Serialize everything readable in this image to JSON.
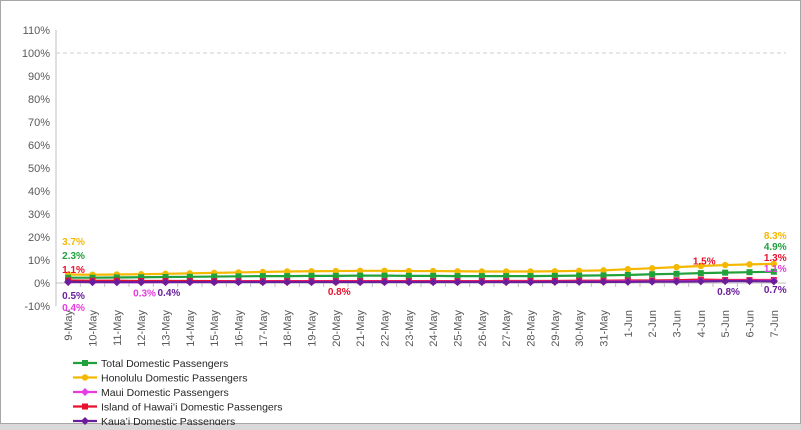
{
  "chart_data": {
    "type": "line",
    "ylim": [
      -10,
      110
    ],
    "y_ticks": [
      "-10%",
      "0%",
      "10%",
      "20%",
      "30%",
      "40%",
      "50%",
      "60%",
      "70%",
      "80%",
      "90%",
      "100%",
      "110%"
    ],
    "y_tick_values": [
      -10,
      0,
      10,
      20,
      30,
      40,
      50,
      60,
      70,
      80,
      90,
      100,
      110
    ],
    "reference_line": 100,
    "grid": false,
    "legend_position": "bottom-left",
    "categories": [
      "9-May",
      "10-May",
      "11-May",
      "12-May",
      "13-May",
      "14-May",
      "15-May",
      "16-May",
      "17-May",
      "18-May",
      "19-May",
      "20-May",
      "21-May",
      "22-May",
      "23-May",
      "24-May",
      "25-May",
      "26-May",
      "27-May",
      "28-May",
      "29-May",
      "30-May",
      "31-May",
      "1-Jun",
      "2-Jun",
      "3-Jun",
      "4-Jun",
      "5-Jun",
      "6-Jun",
      "7-Jun"
    ],
    "series": [
      {
        "name": "Total Domestic Passengers",
        "color": "#21a13c",
        "marker": "square",
        "values": [
          2.3,
          2.3,
          2.4,
          2.5,
          2.6,
          2.7,
          2.8,
          2.9,
          3.0,
          3.0,
          3.1,
          3.1,
          3.2,
          3.2,
          3.1,
          3.1,
          3.0,
          3.0,
          3.0,
          3.0,
          3.1,
          3.2,
          3.3,
          3.5,
          3.8,
          4.0,
          4.3,
          4.5,
          4.7,
          4.9
        ]
      },
      {
        "name": "Honolulu Domestic Passengers",
        "color": "#f5b800",
        "marker": "circle",
        "values": [
          3.7,
          3.6,
          3.7,
          3.8,
          4.0,
          4.2,
          4.4,
          4.6,
          4.8,
          5.0,
          5.1,
          5.2,
          5.3,
          5.3,
          5.2,
          5.2,
          5.1,
          5.0,
          5.0,
          5.0,
          5.1,
          5.3,
          5.5,
          6.0,
          6.4,
          6.9,
          7.4,
          7.8,
          8.1,
          8.3
        ]
      },
      {
        "name": "Maui Domestic Passengers",
        "color": "#e83ae0",
        "marker": "diamond",
        "values": [
          0.4,
          0.4,
          0.3,
          0.3,
          0.4,
          0.4,
          0.4,
          0.5,
          0.5,
          0.5,
          0.5,
          0.5,
          0.5,
          0.5,
          0.5,
          0.5,
          0.5,
          0.5,
          0.5,
          0.5,
          0.5,
          0.6,
          0.6,
          0.7,
          0.7,
          0.8,
          0.9,
          1.0,
          1.0,
          1.1
        ]
      },
      {
        "name": "Island of Hawai’i Domestic Passengers",
        "color": "#e8102c",
        "marker": "square",
        "values": [
          1.1,
          1.0,
          1.0,
          0.9,
          0.9,
          0.9,
          0.8,
          0.8,
          0.8,
          0.8,
          0.8,
          0.8,
          0.8,
          0.8,
          0.8,
          0.8,
          0.8,
          0.8,
          0.9,
          0.9,
          0.9,
          1.0,
          1.0,
          1.1,
          1.1,
          1.2,
          1.5,
          1.3,
          1.3,
          1.3
        ]
      },
      {
        "name": "Kaua’i Domestic Passengers",
        "color": "#6a1e9c",
        "marker": "diamond",
        "values": [
          0.5,
          0.4,
          0.4,
          0.4,
          0.4,
          0.4,
          0.4,
          0.4,
          0.4,
          0.4,
          0.4,
          0.4,
          0.4,
          0.4,
          0.4,
          0.4,
          0.4,
          0.4,
          0.4,
          0.4,
          0.5,
          0.5,
          0.5,
          0.5,
          0.6,
          0.6,
          0.7,
          0.8,
          0.8,
          0.7
        ]
      }
    ],
    "annotations": [
      {
        "text": "3.7%",
        "series": 1,
        "index": 0,
        "color": "#f5b800"
      },
      {
        "text": "2.3%",
        "series": 0,
        "index": 0,
        "color": "#21a13c"
      },
      {
        "text": "1.1%",
        "series": 3,
        "index": 0,
        "color": "#e8102c"
      },
      {
        "text": "0.5%",
        "series": 4,
        "index": 0,
        "color": "#6a1e9c"
      },
      {
        "text": "0.4%",
        "series": 2,
        "index": 0,
        "color": "#e83ae0"
      },
      {
        "text": "0.3%",
        "series": 2,
        "index": 3,
        "color": "#e83ae0"
      },
      {
        "text": "0.4%",
        "series": 4,
        "index": 4,
        "color": "#6a1e9c"
      },
      {
        "text": "0.8%",
        "series": 3,
        "index": 11,
        "color": "#e8102c"
      },
      {
        "text": "1.5%",
        "series": 3,
        "index": 26,
        "color": "#e8102c"
      },
      {
        "text": "0.8%",
        "series": 4,
        "index": 27,
        "color": "#6a1e9c"
      },
      {
        "text": "8.3%",
        "series": 1,
        "index": 29,
        "color": "#f5b800"
      },
      {
        "text": "4.9%",
        "series": 0,
        "index": 29,
        "color": "#21a13c"
      },
      {
        "text": "1.3%",
        "series": 3,
        "index": 29,
        "color": "#e8102c"
      },
      {
        "text": "1.1%",
        "series": 2,
        "index": 29,
        "color": "#e83ae0"
      },
      {
        "text": "0.7%",
        "series": 4,
        "index": 29,
        "color": "#6a1e9c"
      }
    ]
  }
}
